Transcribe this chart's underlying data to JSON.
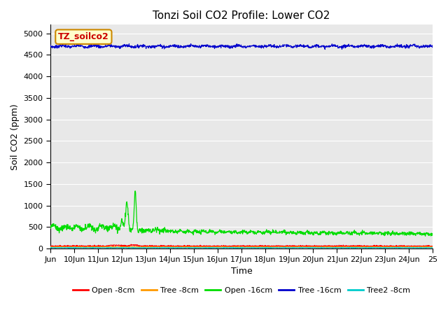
{
  "title": "Tonzi Soil CO2 Profile: Lower CO2",
  "ylabel": "Soil CO2 (ppm)",
  "xlabel": "Time",
  "annotation": "TZ_soilco2",
  "ylim": [
    0,
    5200
  ],
  "yticks": [
    0,
    500,
    1000,
    1500,
    2000,
    2500,
    3000,
    3500,
    4000,
    4500,
    5000
  ],
  "x_start_day": 9,
  "x_end_day": 25,
  "x_tick_days": [
    9,
    10,
    11,
    12,
    13,
    14,
    15,
    16,
    17,
    18,
    19,
    20,
    21,
    22,
    23,
    24,
    25
  ],
  "x_tick_labels": [
    "Jun",
    "10Jun",
    "11Jun",
    "12Jun",
    "13Jun",
    "14Jun",
    "15Jun",
    "16Jun",
    "17Jun",
    "18Jun",
    "19Jun",
    "20Jun",
    "21Jun",
    "22Jun",
    "23Jun",
    "24Jun",
    "25"
  ],
  "series": {
    "open_8cm": {
      "label": "Open -8cm",
      "color": "#ff0000",
      "lw": 0.8
    },
    "tree_8cm": {
      "label": "Tree -8cm",
      "color": "#ff9900",
      "lw": 0.8
    },
    "open_16cm": {
      "label": "Open -16cm",
      "color": "#00dd00",
      "lw": 0.9
    },
    "tree_16cm": {
      "label": "Tree -16cm",
      "color": "#0000cc",
      "lw": 0.8
    },
    "tree2_8cm": {
      "label": "Tree2 -8cm",
      "color": "#00cccc",
      "lw": 0.8
    }
  },
  "bg_color": "#e8e8e8",
  "fig_bg": "#ffffff",
  "title_fontsize": 11,
  "label_fontsize": 9,
  "tick_fontsize": 8,
  "annotation_fontsize": 9,
  "legend_fontsize": 8
}
